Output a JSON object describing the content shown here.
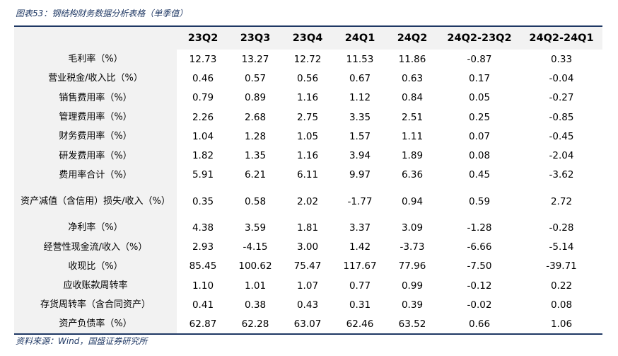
{
  "title": "图表53：钢结构财务数据分析表格（单季值）",
  "source": "资料来源：Wind，国盛证券研究所",
  "table": {
    "columns": [
      "",
      "23Q2",
      "23Q3",
      "23Q4",
      "24Q1",
      "24Q2",
      "24Q2-23Q2",
      "24Q2-24Q1"
    ],
    "rows": [
      {
        "label": "毛利率（%）",
        "values": [
          "12.73",
          "13.27",
          "12.72",
          "11.53",
          "11.86",
          "-0.87",
          "0.33"
        ]
      },
      {
        "label": "营业税金/收入比（%）",
        "values": [
          "0.46",
          "0.57",
          "0.56",
          "0.67",
          "0.63",
          "0.17",
          "-0.04"
        ]
      },
      {
        "label": "销售费用率（%）",
        "values": [
          "0.79",
          "0.89",
          "1.16",
          "1.12",
          "0.84",
          "0.05",
          "-0.27"
        ]
      },
      {
        "label": "管理费用率（%）",
        "values": [
          "2.26",
          "2.68",
          "2.75",
          "3.35",
          "2.51",
          "0.25",
          "-0.85"
        ]
      },
      {
        "label": "财务费用率（%）",
        "values": [
          "1.04",
          "1.28",
          "1.05",
          "1.57",
          "1.11",
          "0.07",
          "-0.45"
        ]
      },
      {
        "label": "研发费用率（%）",
        "values": [
          "1.82",
          "1.35",
          "1.16",
          "3.94",
          "1.89",
          "0.08",
          "-2.04"
        ]
      },
      {
        "label": "费用率合计（%）",
        "values": [
          "5.91",
          "6.21",
          "6.11",
          "9.97",
          "6.36",
          "0.45",
          "-3.62"
        ]
      },
      {
        "label": "资产减值（含信用）损失/收入（%）",
        "values": [
          "0.35",
          "0.58",
          "2.02",
          "-1.77",
          "0.94",
          "0.59",
          "2.72"
        ]
      },
      {
        "label": "净利率（%）",
        "values": [
          "4.38",
          "3.59",
          "1.81",
          "3.37",
          "3.09",
          "-1.28",
          "-0.28"
        ]
      },
      {
        "label": "经营性现金流/收入（%）",
        "values": [
          "2.93",
          "-4.15",
          "3.00",
          "1.42",
          "-3.73",
          "-6.66",
          "-5.14"
        ]
      },
      {
        "label": "收现比（%）",
        "values": [
          "85.45",
          "100.62",
          "75.47",
          "117.67",
          "77.96",
          "-7.50",
          "-39.71"
        ]
      },
      {
        "label": "应收账款周转率",
        "values": [
          "1.10",
          "1.01",
          "1.07",
          "0.77",
          "0.99",
          "-0.12",
          "0.22"
        ]
      },
      {
        "label": "存货周转率（含合同资产）",
        "values": [
          "0.41",
          "0.38",
          "0.43",
          "0.31",
          "0.39",
          "-0.02",
          "0.08"
        ]
      },
      {
        "label": "资产负债率（%）",
        "values": [
          "62.87",
          "62.28",
          "63.07",
          "62.46",
          "63.52",
          "0.66",
          "1.06"
        ]
      }
    ]
  }
}
